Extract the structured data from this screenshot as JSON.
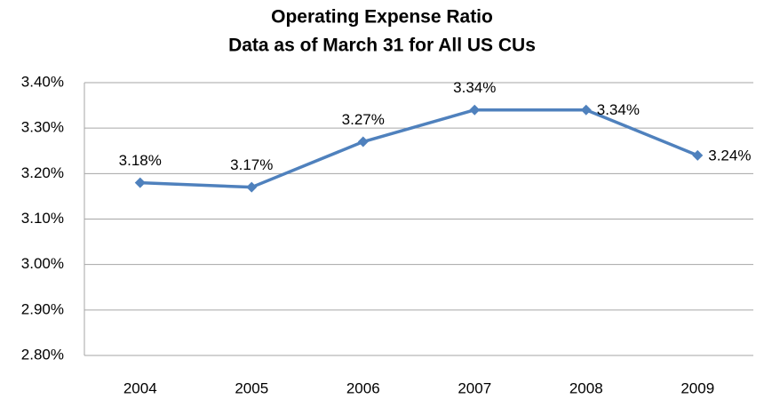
{
  "chart_data": {
    "type": "line",
    "title": "Operating Expense Ratio",
    "subtitle": "Data as of March 31 for All US CUs",
    "categories": [
      "2004",
      "2005",
      "2006",
      "2007",
      "2008",
      "2009"
    ],
    "values": [
      3.18,
      3.17,
      3.27,
      3.34,
      3.34,
      3.24
    ],
    "value_labels": [
      "3.18%",
      "3.17%",
      "3.27%",
      "3.34%",
      "3.34%",
      "3.24%"
    ],
    "color": "#4f81bd",
    "ylim": [
      2.8,
      3.4
    ],
    "yticks": [
      {
        "value": 2.8,
        "label": "2.80%"
      },
      {
        "value": 2.9,
        "label": "2.90%"
      },
      {
        "value": 3.0,
        "label": "3.00%"
      },
      {
        "value": 3.1,
        "label": "3.10%"
      },
      {
        "value": 3.2,
        "label": "3.20%"
      },
      {
        "value": 3.3,
        "label": "3.30%"
      },
      {
        "value": 3.4,
        "label": "3.40%"
      }
    ],
    "grid": true
  }
}
